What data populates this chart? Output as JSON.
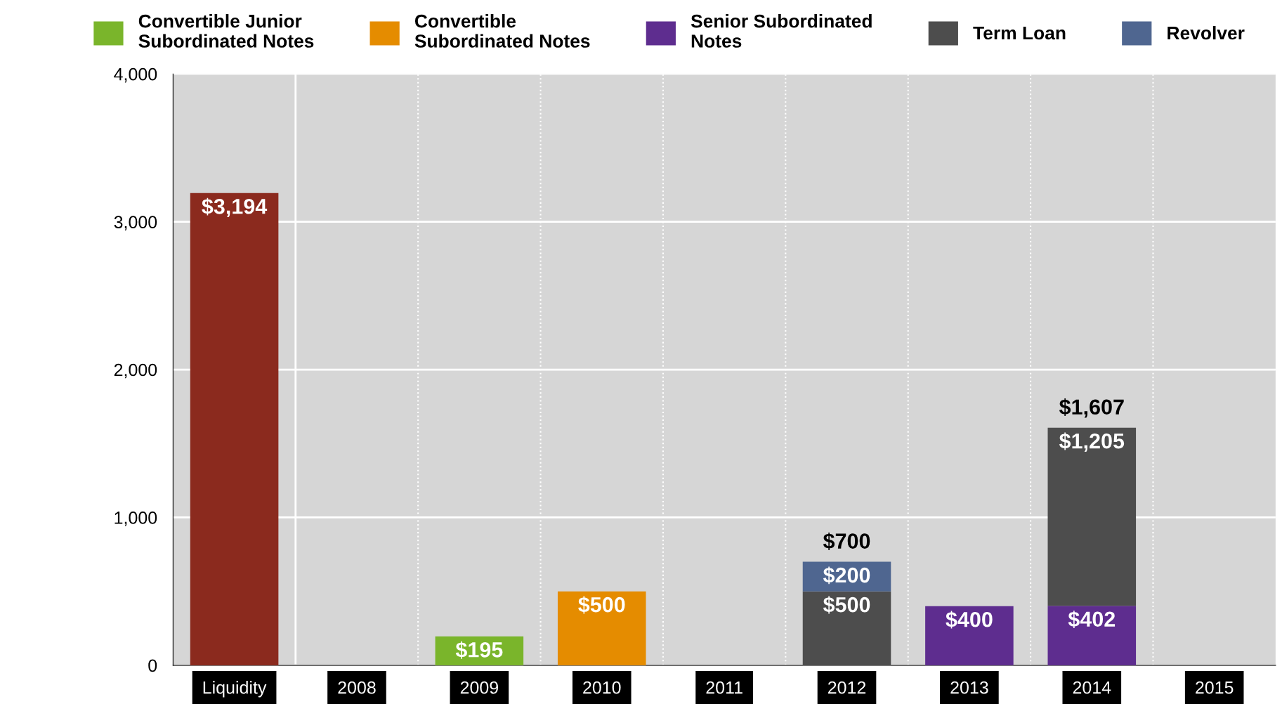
{
  "chart_data": {
    "type": "bar",
    "stacked": true,
    "categories": [
      "Liquidity",
      "2008",
      "2009",
      "2010",
      "2011",
      "2012",
      "2013",
      "2014",
      "2015"
    ],
    "series": [
      {
        "color": "#8b2a1e",
        "values": [
          3194,
          null,
          null,
          null,
          null,
          null,
          null,
          null,
          null
        ],
        "value_labels": [
          "$3,194",
          null,
          null,
          null,
          null,
          null,
          null,
          null,
          null
        ]
      },
      {
        "name": "Convertible Junior\nSubordinated Notes",
        "color": "#7ab52b",
        "values": [
          null,
          null,
          195,
          null,
          null,
          null,
          null,
          null,
          null
        ],
        "value_labels": [
          null,
          null,
          "$195",
          null,
          null,
          null,
          null,
          null,
          null
        ]
      },
      {
        "name": "Convertible\nSubordinated Notes",
        "color": "#e58c00",
        "values": [
          null,
          null,
          null,
          500,
          null,
          null,
          null,
          null,
          null
        ],
        "value_labels": [
          null,
          null,
          null,
          "$500",
          null,
          null,
          null,
          null,
          null
        ]
      },
      {
        "name": "Senior Subordinated\nNotes",
        "color": "#5e2d8f",
        "values": [
          null,
          null,
          null,
          null,
          null,
          null,
          400,
          402,
          null
        ],
        "value_labels": [
          null,
          null,
          null,
          null,
          null,
          null,
          "$400",
          "$402",
          null
        ]
      },
      {
        "name": "Term Loan",
        "color": "#4d4d4d",
        "values": [
          null,
          null,
          null,
          null,
          null,
          500,
          null,
          1205,
          null
        ],
        "value_labels": [
          null,
          null,
          null,
          null,
          null,
          "$500",
          null,
          "$1,205",
          null
        ]
      },
      {
        "name": "Revolver",
        "color": "#4f6690",
        "values": [
          null,
          null,
          null,
          null,
          null,
          200,
          null,
          null,
          null
        ],
        "value_labels": [
          null,
          null,
          null,
          null,
          null,
          "$200",
          null,
          null,
          null
        ]
      }
    ],
    "totals": [
      null,
      null,
      null,
      null,
      null,
      "$700",
      null,
      "$1,607",
      null
    ],
    "ylim": [
      0,
      4000
    ],
    "yticks": [
      {
        "value": 0,
        "label": "0"
      },
      {
        "value": 1000,
        "label": "1,000"
      },
      {
        "value": 2000,
        "label": "2,000"
      },
      {
        "value": 3000,
        "label": "3,000"
      },
      {
        "value": 4000,
        "label": "4,000"
      }
    ],
    "grid": true,
    "legend": "top"
  }
}
